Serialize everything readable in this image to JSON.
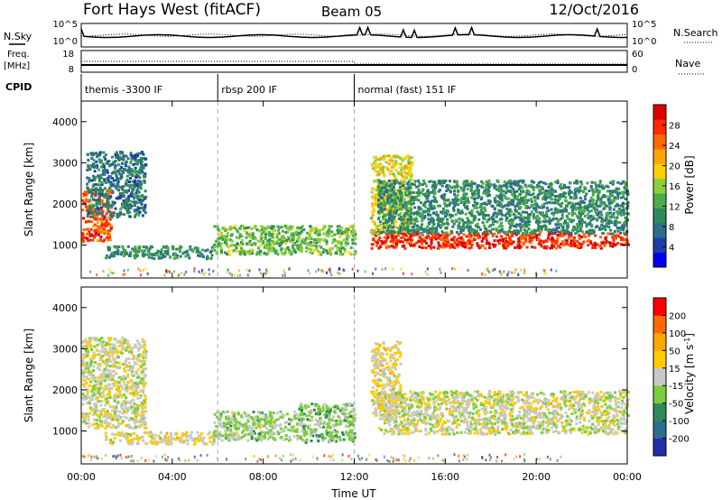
{
  "header": {
    "station": "Fort Hays West (fitACF)",
    "beam": "Beam 05",
    "date": "12/Oct/2016"
  },
  "strip": {
    "nsky_label": "N.Sky",
    "nsearch_label": "N.Search",
    "freq_label_1": "Freq.",
    "freq_label_2": "[MHz]",
    "nave_label": "Nave",
    "cpid_label": "CPID",
    "noise_ticks_left": [
      "10^5",
      "10^0"
    ],
    "noise_ticks_right": [
      "10^5",
      "10^0"
    ],
    "freq_ticks": [
      "18",
      "8"
    ],
    "nave_ticks": [
      "60",
      "0"
    ]
  },
  "cpid_segments": [
    {
      "start_hour": 0,
      "label": "themis -3300 IF"
    },
    {
      "start_hour": 6,
      "label": "rbsp 200 IF"
    },
    {
      "start_hour": 12,
      "label": "normal (fast) 151 IF"
    }
  ],
  "colorbars": {
    "power": {
      "label": "Power [dB]",
      "ticks": [
        "28",
        "24",
        "20",
        "16",
        "12",
        "8",
        "4"
      ],
      "colors": [
        "#0000ee",
        "#1e3fa8",
        "#2f6e8a",
        "#2e8b57",
        "#4cab4c",
        "#8fcf3e",
        "#ffd000",
        "#ffa500",
        "#ff6a00",
        "#ff2a00",
        "#dd0000"
      ]
    },
    "velocity": {
      "label": "Velocity [m s",
      "label_sup": "-1",
      "label_end": "]",
      "ticks": [
        "200",
        "100",
        "50",
        "15",
        "-15",
        "-50",
        "-100",
        "-200"
      ],
      "colors": [
        "#1e2fb0",
        "#2e6e8e",
        "#2e8b57",
        "#7ccd3c",
        "#c8c8c8",
        "#ffcc00",
        "#ffa500",
        "#ff6a00",
        "#ff0000"
      ]
    }
  },
  "chart_data": [
    {
      "type": "heatmap",
      "title": "Fort Hays West (fitACF)",
      "ylabel": "Slant Range [km]",
      "ylim": [
        200,
        4500
      ],
      "yticks": [
        "1000",
        "2000",
        "3000",
        "4000"
      ],
      "xlim_hours": [
        0,
        24
      ],
      "xticks": [
        "00:00",
        "04:00",
        "08:00",
        "12:00",
        "16:00",
        "20:00",
        "00:00"
      ],
      "quantity": "Power [dB]",
      "features": [
        {
          "hours": [
            0.0,
            1.3
          ],
          "range_km": [
            1100,
            2400
          ],
          "level_db": 26
        },
        {
          "hours": [
            0.2,
            2.8
          ],
          "range_km": [
            1700,
            3300
          ],
          "level_db": 8
        },
        {
          "hours": [
            1.0,
            5.8
          ],
          "range_km": [
            700,
            1000
          ],
          "level_db": 10
        },
        {
          "hours": [
            5.8,
            12.0
          ],
          "range_km": [
            800,
            1500
          ],
          "level_db": 14
        },
        {
          "hours": [
            12.7,
            24.0
          ],
          "range_km": [
            950,
            1350
          ],
          "level_db": 28
        },
        {
          "hours": [
            12.7,
            14.5
          ],
          "range_km": [
            1300,
            3200
          ],
          "level_db": 18
        },
        {
          "hours": [
            13.0,
            24.0
          ],
          "range_km": [
            1300,
            2600
          ],
          "level_db": 10
        }
      ]
    },
    {
      "type": "heatmap",
      "ylabel": "Slant Range [km]",
      "ylim": [
        200,
        4500
      ],
      "yticks": [
        "1000",
        "2000",
        "3000",
        "4000"
      ],
      "xlim_hours": [
        0,
        24
      ],
      "xticks": [
        "00:00",
        "04:00",
        "08:00",
        "12:00",
        "16:00",
        "20:00",
        "00:00"
      ],
      "xlabel": "Time UT",
      "quantity": "Velocity [m s-1]",
      "features": [
        {
          "hours": [
            0.0,
            2.8
          ],
          "range_km": [
            1100,
            3300
          ],
          "level_ms": 0
        },
        {
          "hours": [
            1.0,
            5.8
          ],
          "range_km": [
            700,
            1000
          ],
          "level_ms": 25
        },
        {
          "hours": [
            5.8,
            9.5
          ],
          "range_km": [
            800,
            1500
          ],
          "level_ms": -30
        },
        {
          "hours": [
            9.5,
            12.0
          ],
          "range_km": [
            750,
            1700
          ],
          "level_ms": -50
        },
        {
          "hours": [
            12.7,
            14.0
          ],
          "range_km": [
            1400,
            3200
          ],
          "level_ms": 30
        },
        {
          "hours": [
            13.0,
            24.0
          ],
          "range_km": [
            950,
            2000
          ],
          "level_ms": 0
        }
      ]
    }
  ]
}
